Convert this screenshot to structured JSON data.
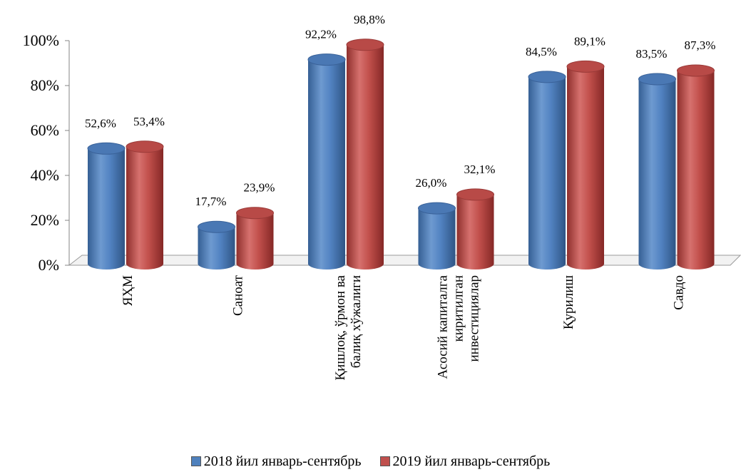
{
  "chart_data": {
    "type": "bar",
    "style": "3d-cylinder",
    "categories": [
      [
        "ЯҲМ"
      ],
      [
        "Саноат"
      ],
      [
        "Қишлоқ, ўрмон ва",
        "балиқ хўжалиги"
      ],
      [
        "Асосий капиталга",
        "киритилган",
        "инвестициялар"
      ],
      [
        "Қурилиш"
      ],
      [
        "Савдо"
      ]
    ],
    "series": [
      {
        "name": "2018 йил январь-сентябрь",
        "color": "#4F81BD",
        "values": [
          52.6,
          17.7,
          92.2,
          26.0,
          84.5,
          83.5
        ],
        "labels": [
          "52,6%",
          "17,7%",
          "92,2%",
          "26,0%",
          "84,5%",
          "83,5%"
        ]
      },
      {
        "name": "2019 йил январь-сентябрь",
        "color": "#C0504D",
        "values": [
          53.4,
          23.9,
          98.8,
          32.1,
          89.1,
          87.3
        ],
        "labels": [
          "53,4%",
          "23,9%",
          "98,8%",
          "32,1%",
          "89,1%",
          "87,3%"
        ]
      }
    ],
    "yticks": [
      "0%",
      "20%",
      "40%",
      "60%",
      "80%",
      "100%"
    ],
    "ylim": [
      0,
      100
    ],
    "grid": false,
    "legend_position": "bottom"
  }
}
